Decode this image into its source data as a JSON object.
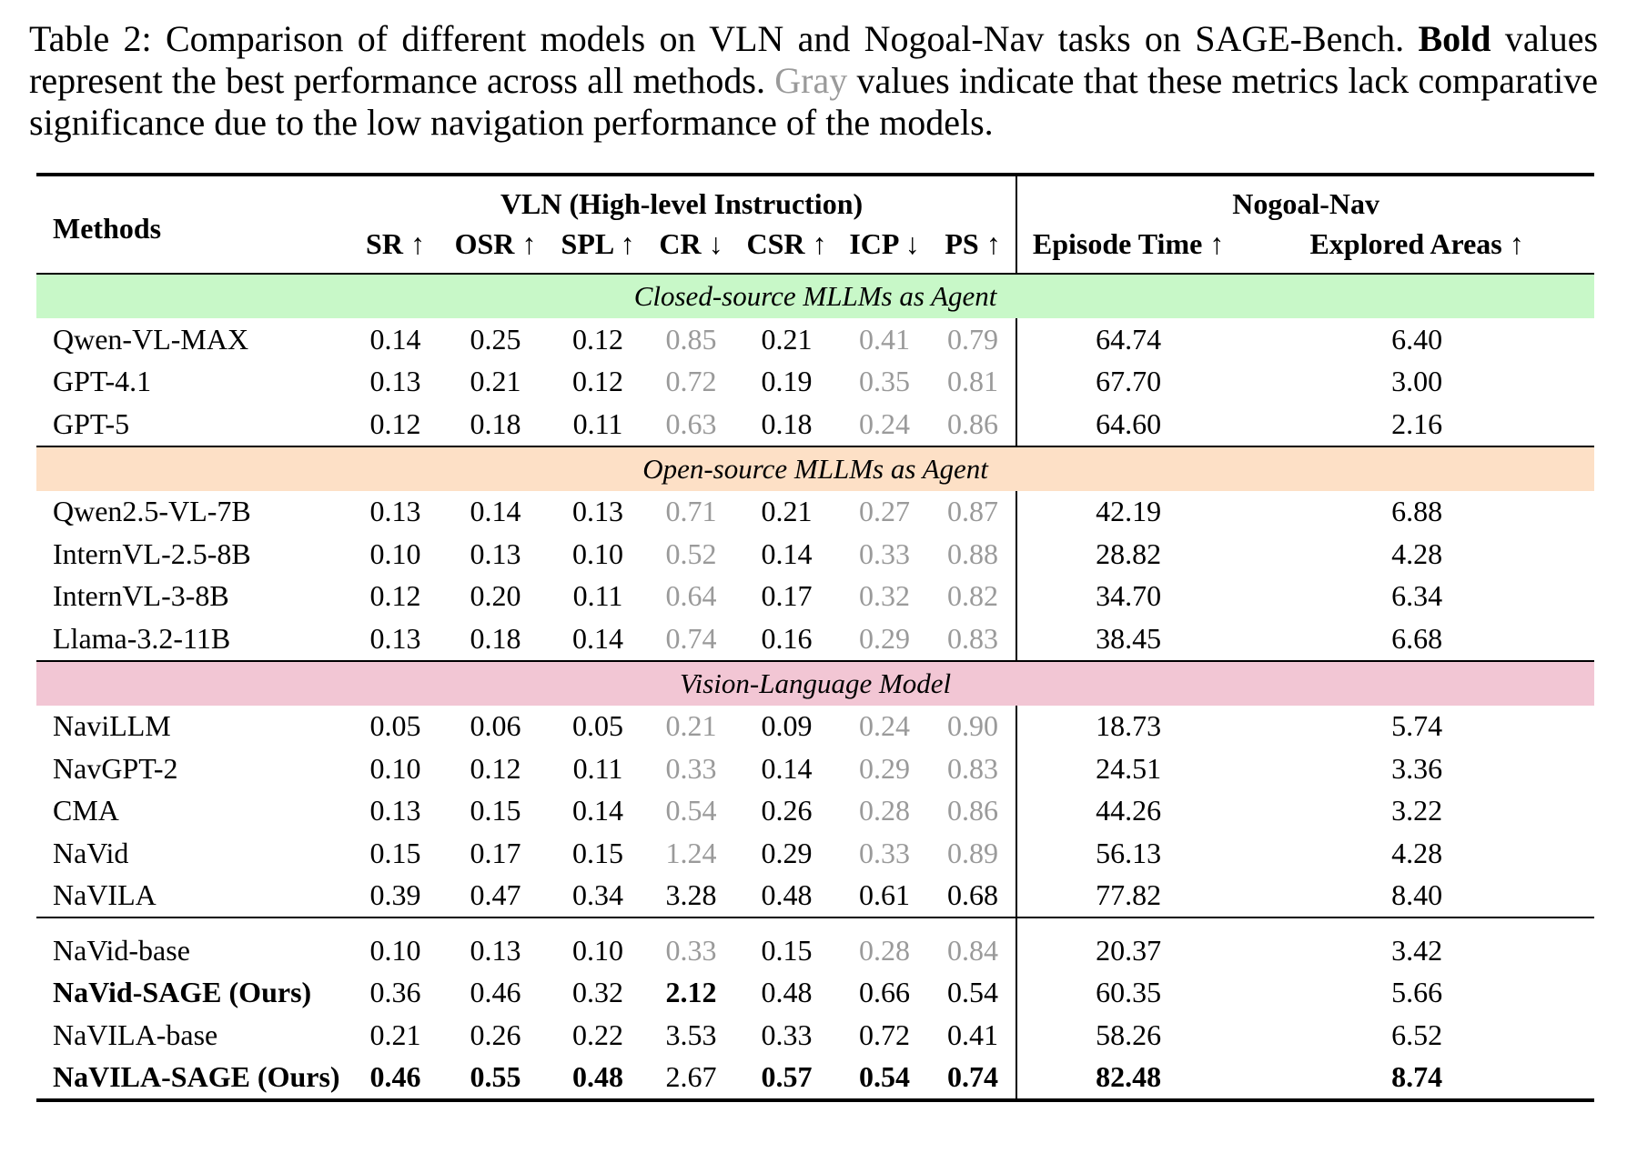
{
  "caption": {
    "label": "Table 2:",
    "text1": "Comparison of different models on VLN and Nogoal-Nav tasks on SAGE-Bench.",
    "bold_word": "Bold",
    "text2": "values represent the best performance across all methods.",
    "gray_word": "Gray",
    "text3": "values indicate that these metrics lack comparative significance due to the low navigation performance of the models."
  },
  "header": {
    "methods": "Methods",
    "vln_group": "VLN (High-level Instruction)",
    "nogoal_group": "Nogoal-Nav",
    "columns": [
      "SR ↑",
      "OSR ↑",
      "SPL ↑",
      "CR ↓",
      "CSR ↑",
      "ICP ↓",
      "PS ↑",
      "Episode Time ↑",
      "Explored Areas ↑"
    ]
  },
  "sections": [
    {
      "title": "Closed-source MLLMs as Agent",
      "rows": [
        {
          "method": "Qwen-VL-MAX",
          "values": [
            "0.14",
            "0.25",
            "0.12",
            "0.85",
            "0.21",
            "0.41",
            "0.79",
            "64.74",
            "6.40"
          ]
        },
        {
          "method": "GPT-4.1",
          "values": [
            "0.13",
            "0.21",
            "0.12",
            "0.72",
            "0.19",
            "0.35",
            "0.81",
            "67.70",
            "3.00"
          ]
        },
        {
          "method": "GPT-5",
          "values": [
            "0.12",
            "0.18",
            "0.11",
            "0.63",
            "0.18",
            "0.24",
            "0.86",
            "64.60",
            "2.16"
          ]
        }
      ]
    },
    {
      "title": "Open-source MLLMs as Agent",
      "rows": [
        {
          "method": "Qwen2.5-VL-7B",
          "values": [
            "0.13",
            "0.14",
            "0.13",
            "0.71",
            "0.21",
            "0.27",
            "0.87",
            "42.19",
            "6.88"
          ]
        },
        {
          "method": "InternVL-2.5-8B",
          "values": [
            "0.10",
            "0.13",
            "0.10",
            "0.52",
            "0.14",
            "0.33",
            "0.88",
            "28.82",
            "4.28"
          ]
        },
        {
          "method": "InternVL-3-8B",
          "values": [
            "0.12",
            "0.20",
            "0.11",
            "0.64",
            "0.17",
            "0.32",
            "0.82",
            "34.70",
            "6.34"
          ]
        },
        {
          "method": "Llama-3.2-11B",
          "values": [
            "0.13",
            "0.18",
            "0.14",
            "0.74",
            "0.16",
            "0.29",
            "0.83",
            "38.45",
            "6.68"
          ]
        }
      ]
    },
    {
      "title": "Vision-Language Model",
      "rows": [
        {
          "method": "NaviLLM",
          "values": [
            "0.05",
            "0.06",
            "0.05",
            "0.21",
            "0.09",
            "0.24",
            "0.90",
            "18.73",
            "5.74"
          ]
        },
        {
          "method": "NavGPT-2",
          "values": [
            "0.10",
            "0.12",
            "0.11",
            "0.33",
            "0.14",
            "0.29",
            "0.83",
            "24.51",
            "3.36"
          ]
        },
        {
          "method": "CMA",
          "values": [
            "0.13",
            "0.15",
            "0.14",
            "0.54",
            "0.26",
            "0.28",
            "0.86",
            "44.26",
            "3.22"
          ]
        },
        {
          "method": "NaVid",
          "values": [
            "0.15",
            "0.17",
            "0.15",
            "1.24",
            "0.29",
            "0.33",
            "0.89",
            "56.13",
            "4.28"
          ]
        },
        {
          "method": "NaVILA",
          "values": [
            "0.39",
            "0.47",
            "0.34",
            "3.28",
            "0.48",
            "0.61",
            "0.68",
            "77.82",
            "8.40"
          ]
        }
      ]
    },
    {
      "title": "",
      "rows": [
        {
          "method": "NaVid-base",
          "values": [
            "0.10",
            "0.13",
            "0.10",
            "0.33",
            "0.15",
            "0.28",
            "0.84",
            "20.37",
            "3.42"
          ]
        },
        {
          "method": "NaVid-SAGE (Ours)",
          "values": [
            "0.36",
            "0.46",
            "0.32",
            "2.12",
            "0.48",
            "0.66",
            "0.54",
            "60.35",
            "5.66"
          ]
        },
        {
          "method": "NaVILA-base",
          "values": [
            "0.21",
            "0.26",
            "0.22",
            "3.53",
            "0.33",
            "0.72",
            "0.41",
            "58.26",
            "6.52"
          ]
        },
        {
          "method": "NaVILA-SAGE (Ours)",
          "values": [
            "0.46",
            "0.55",
            "0.48",
            "2.67",
            "0.57",
            "0.54",
            "0.74",
            "82.48",
            "8.74"
          ]
        }
      ]
    }
  ]
}
